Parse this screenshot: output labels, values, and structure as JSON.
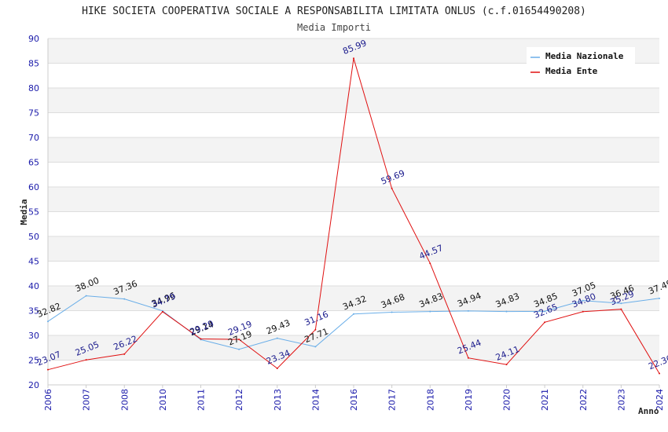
{
  "chart_data": {
    "type": "line",
    "title": "HIKE SOCIETA COOPERATIVA SOCIALE A RESPONSABILITA LIMITATA ONLUS (c.f.01654490208)",
    "subtitle": "Media Importi",
    "xlabel": "Anno",
    "ylabel": "Media",
    "ylim": [
      20,
      90
    ],
    "yticks": [
      20,
      25,
      30,
      35,
      40,
      45,
      50,
      55,
      60,
      65,
      70,
      75,
      80,
      85,
      90
    ],
    "categories": [
      "2006",
      "2007",
      "2008",
      "2010",
      "2011",
      "2012",
      "2013",
      "2014",
      "2016",
      "2017",
      "2018",
      "2019",
      "2020",
      "2021",
      "2022",
      "2023",
      "2024"
    ],
    "series": [
      {
        "name": "Media Nazionale",
        "color": "#6aaee8",
        "values": [
          32.82,
          38.0,
          37.36,
          34.96,
          29.14,
          27.19,
          29.43,
          27.71,
          34.32,
          34.68,
          34.83,
          34.94,
          34.83,
          34.85,
          37.05,
          36.46,
          37.49
        ],
        "labels": [
          "32.82",
          "38.00",
          "37.36",
          "34.96",
          "29.14",
          "27.19",
          "29.43",
          "27.71",
          "34.32",
          "34.68",
          "34.83",
          "34.94",
          "34.83",
          "34.85",
          "37.05",
          "36.46",
          "37.49"
        ]
      },
      {
        "name": "Media Ente",
        "color": "#e01010",
        "values": [
          23.07,
          25.05,
          26.22,
          34.79,
          29.29,
          29.19,
          23.34,
          31.16,
          85.99,
          59.69,
          44.57,
          25.44,
          24.11,
          32.65,
          34.8,
          35.29,
          22.3
        ],
        "labels": [
          "23.07",
          "25.05",
          "26.22",
          "34.79",
          "29.29",
          "29.19",
          "23.34",
          "31.16",
          "85.99",
          "59.69",
          "44.57",
          "25.44",
          "24.11",
          "32.65",
          "34.80",
          "35.29",
          "22.30"
        ]
      }
    ],
    "legend_position": "top-right",
    "grid": true
  }
}
